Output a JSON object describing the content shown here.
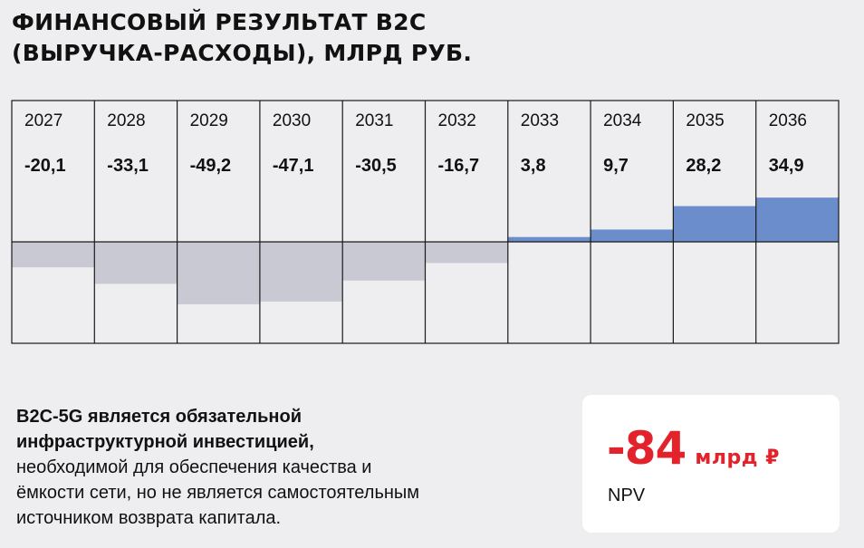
{
  "chart_data": {
    "type": "bar",
    "title_lines": [
      "Финансовый результат B2C",
      "(выручка-расходы), млрд руб."
    ],
    "categories": [
      "2027",
      "2028",
      "2029",
      "2030",
      "2031",
      "2032",
      "2033",
      "2034",
      "2035",
      "2036"
    ],
    "value_labels": [
      "-20,1",
      "-33,1",
      "-49,2",
      "-47,1",
      "-30,5",
      "-16,7",
      "3,8",
      "9,7",
      "28,2",
      "34,9"
    ],
    "values": [
      -20.1,
      -33.1,
      -49.2,
      -47.1,
      -30.5,
      -16.7,
      3.8,
      9.7,
      28.2,
      34.9
    ],
    "ylim": [
      -80,
      37
    ],
    "colors": {
      "positive": "#6b8dcc",
      "negative": "#c9c9d3",
      "grid": "#1a1a1a",
      "background": "#eeeef0"
    }
  },
  "note": {
    "bold_lines": [
      "B2C-5G является обязательной",
      "инфраструктурной инвестицией,"
    ],
    "regular_lines": [
      "необходимой для обеспечения качества и",
      "ёмкости сети, но не является самостоятельным",
      "источником возврата капитала."
    ]
  },
  "npv": {
    "value": "-84",
    "unit": "млрд ₽",
    "label": "NPV",
    "color": "#e3232c"
  }
}
